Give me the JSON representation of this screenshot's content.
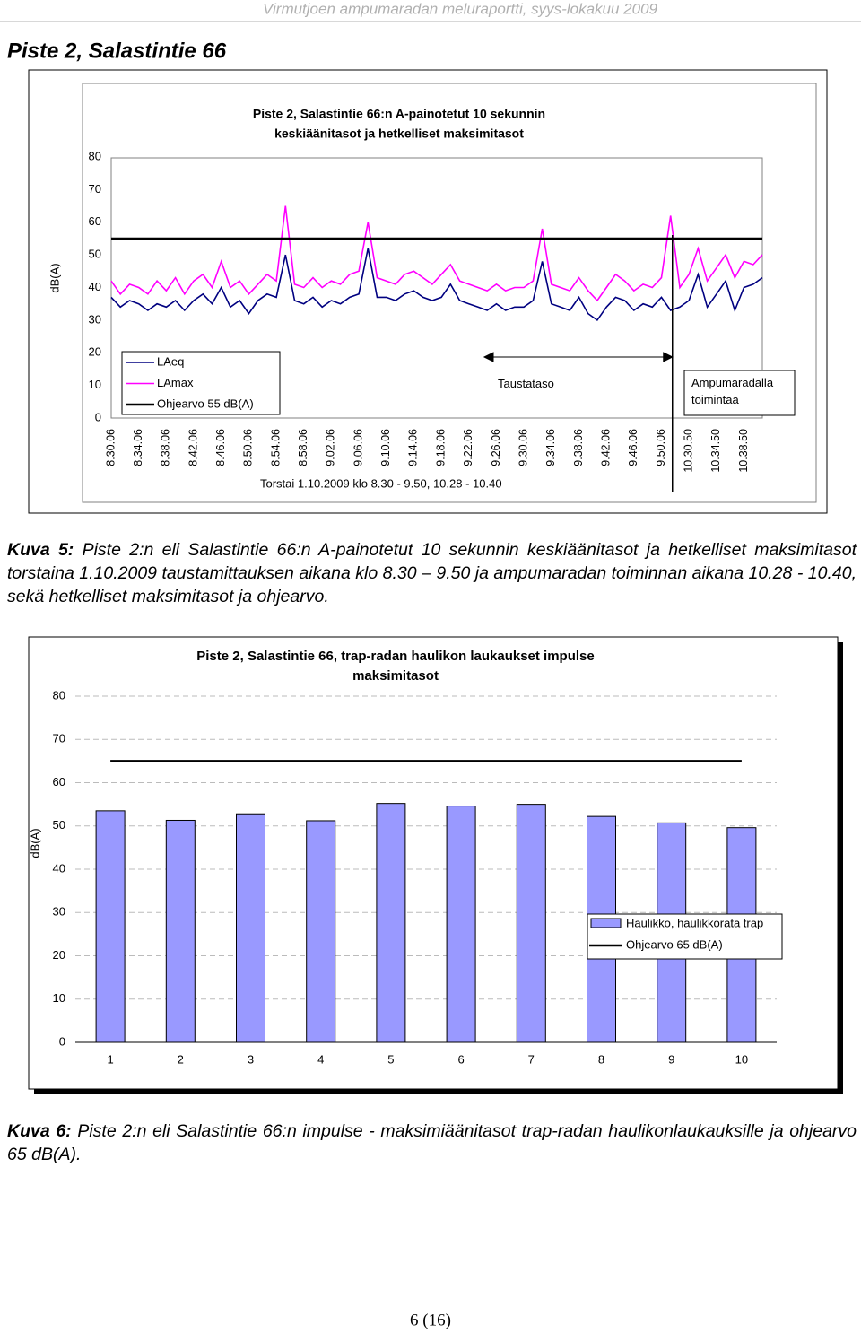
{
  "header": "Virmutjoen ampumaradan meluraportti, syys-lokakuu 2009",
  "page_title": "Piste 2, Salastintie 66",
  "chart_data": [
    {
      "type": "line",
      "title": [
        "Piste 2, Salastintie 66:n A-painotetut 10 sekunnin",
        "keskiäänitasot ja hetkelliset maksimitasot"
      ],
      "y_label": "dB(A)",
      "x_label": "Torstai 1.10.2009 klo 8.30 - 9.50, 10.28 - 10.40",
      "categories": [
        "8.30.06",
        null,
        null,
        "8.34.06",
        null,
        null,
        "8.38.06",
        null,
        null,
        "8.42.06",
        null,
        null,
        "8.46.06",
        null,
        null,
        "8.50.06",
        null,
        null,
        "8.54.06",
        null,
        null,
        "8.58.06",
        null,
        null,
        "9.02.06",
        null,
        null,
        "9.06.06",
        null,
        null,
        "9.10.06",
        null,
        null,
        "9.14.06",
        null,
        null,
        "9.18.06",
        null,
        null,
        "9.22.06",
        null,
        null,
        "9.26.06",
        null,
        null,
        "9.30.06",
        null,
        null,
        "9.34.06",
        null,
        null,
        "9.38.06",
        null,
        null,
        "9.42.06",
        null,
        null,
        "9.46.06",
        null,
        null,
        "9.50.06",
        null,
        null,
        "10.30.50",
        null,
        null,
        "10.34.50",
        null,
        null,
        "10.38.50",
        null,
        null
      ],
      "series": [
        {
          "name": "LAeq",
          "color": "#000080",
          "values": [
            37,
            34,
            36,
            35,
            33,
            35,
            34,
            36,
            33,
            36,
            38,
            35,
            40,
            34,
            36,
            32,
            36,
            38,
            37,
            50,
            36,
            35,
            37,
            34,
            36,
            35,
            37,
            38,
            52,
            37,
            37,
            36,
            38,
            39,
            37,
            36,
            37,
            41,
            36,
            35,
            34,
            33,
            35,
            33,
            34,
            34,
            36,
            48,
            35,
            34,
            33,
            37,
            32,
            30,
            34,
            37,
            36,
            33,
            35,
            34,
            37,
            33,
            34,
            36,
            44,
            34,
            38,
            42,
            33,
            40,
            41,
            43
          ]
        },
        {
          "name": "LAmax",
          "color": "#ff00ff",
          "values": [
            42,
            38,
            41,
            40,
            38,
            42,
            39,
            43,
            38,
            42,
            44,
            40,
            48,
            40,
            42,
            38,
            41,
            44,
            42,
            65,
            41,
            40,
            43,
            40,
            42,
            41,
            44,
            45,
            60,
            43,
            42,
            41,
            44,
            45,
            43,
            41,
            44,
            47,
            42,
            41,
            40,
            39,
            41,
            39,
            40,
            40,
            42,
            58,
            41,
            40,
            39,
            43,
            39,
            36,
            40,
            44,
            42,
            39,
            41,
            40,
            43,
            62,
            40,
            44,
            52,
            42,
            46,
            50,
            43,
            48,
            47,
            50
          ]
        }
      ],
      "reference": {
        "name": "Ohjearvo 55 dB(A)",
        "value": 55,
        "color": "#000000"
      },
      "annotations": {
        "background": "Taustataso",
        "shooting": [
          "Ampumaradalla",
          "toimintaa"
        ]
      },
      "ylim": [
        0,
        80
      ],
      "yticks": [
        0,
        10,
        20,
        30,
        40,
        50,
        60,
        70,
        80
      ],
      "grid": false
    },
    {
      "type": "bar",
      "title": [
        "Piste 2, Salastintie 66, trap-radan haulikon laukaukset impulse",
        "maksimitasot"
      ],
      "y_label": "dB(A)",
      "categories": [
        1,
        2,
        3,
        4,
        5,
        6,
        7,
        8,
        9,
        10
      ],
      "series": [
        {
          "name": "Haulikko, haulikkorata trap",
          "color": "#9999ff",
          "values": [
            53.5,
            51.3,
            52.8,
            51.2,
            55.2,
            54.6,
            55.0,
            52.2,
            50.7,
            49.6
          ]
        }
      ],
      "reference": {
        "name": "Ohjearvo 65 dB(A)",
        "value": 65,
        "color": "#000000"
      },
      "ylim": [
        0,
        80
      ],
      "yticks": [
        0,
        10,
        20,
        30,
        40,
        50,
        60,
        70,
        80
      ],
      "grid": true
    }
  ],
  "captions": [
    {
      "label": "Kuva 5:",
      "text": "Piste 2:n eli Salastintie 66:n A-painotetut 10 sekunnin keskiäänitasot ja hetkelliset maksimitasot torstaina 1.10.2009 taustamittauksen aikana klo 8.30 – 9.50 ja ampumaradan toiminnan aikana 10.28 - 10.40, sekä hetkelliset maksimitasot ja ohjearvo."
    },
    {
      "label": "Kuva 6:",
      "text": "Piste 2:n eli Salastintie 66:n impulse - maksimiäänitasot trap-radan haulikonlaukauksille ja ohjearvo 65 dB(A)."
    }
  ],
  "page_number": "6 (16)"
}
